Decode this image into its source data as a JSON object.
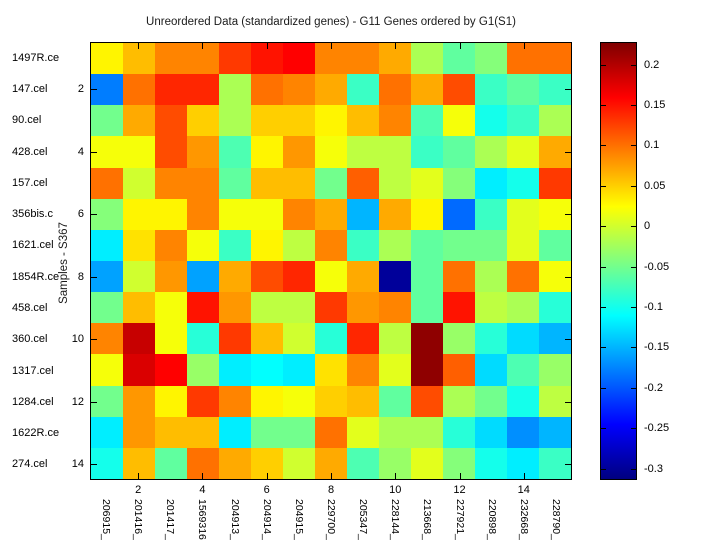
{
  "title": "Unreordered Data (standardized genes) - G11 Genes ordered by G1(S1)",
  "y_axis": {
    "label": "Samples - S367",
    "numeric_ticks": [
      {
        "row": 2,
        "label": "2"
      },
      {
        "row": 4,
        "label": "4"
      },
      {
        "row": 6,
        "label": "6"
      },
      {
        "row": 8,
        "label": "8"
      },
      {
        "row": 10,
        "label": "10"
      },
      {
        "row": 12,
        "label": "12"
      },
      {
        "row": 14,
        "label": "14"
      }
    ]
  },
  "x_axis": {
    "numeric_ticks": [
      {
        "col": 2,
        "label": "2"
      },
      {
        "col": 4,
        "label": "4"
      },
      {
        "col": 6,
        "label": "6"
      },
      {
        "col": 8,
        "label": "8"
      },
      {
        "col": 10,
        "label": "10"
      },
      {
        "col": 12,
        "label": "12"
      },
      {
        "col": 14,
        "label": "14"
      }
    ]
  },
  "colorbar": {
    "ticks": [
      {
        "value": 0.2,
        "label": "0.2"
      },
      {
        "value": 0.15,
        "label": "0.15"
      },
      {
        "value": 0.1,
        "label": "0.1"
      },
      {
        "value": 0.05,
        "label": "0.05"
      },
      {
        "value": 0,
        "label": "0"
      },
      {
        "value": -0.05,
        "label": "-0.05"
      },
      {
        "value": -0.1,
        "label": "-0.1"
      },
      {
        "value": -0.15,
        "label": "-0.15"
      },
      {
        "value": -0.2,
        "label": "-0.2"
      },
      {
        "value": -0.25,
        "label": "-0.25"
      },
      {
        "value": -0.3,
        "label": "-0.3"
      }
    ]
  },
  "chart_data": {
    "type": "heatmap",
    "title": "Unreordered Data (standardized genes) - G11 Genes ordered by G1(S1)",
    "ylabel": "Samples - S367",
    "colormap": "jet",
    "value_range": [
      -0.314,
      0.228
    ],
    "rows": [
      "1497R.ce",
      "147.cel",
      "90.cel",
      "428.cel",
      "157.cel",
      "356bis.c",
      "1621.cel",
      "1854R.ce",
      "458.cel",
      "360.cel",
      "1317.cel",
      "1284.cel",
      "1622R.ce",
      "274.cel"
    ],
    "columns": [
      "206915_",
      "201416_",
      "201417_",
      "1569316",
      "204913_",
      "204914_",
      "204915_",
      "229700_",
      "205347_",
      "228144_",
      "213668_",
      "227921_",
      "220898_",
      "232668_",
      "228790_"
    ],
    "values": [
      [
        0.03,
        0.06,
        0.09,
        0.09,
        0.13,
        0.15,
        0.16,
        0.09,
        0.09,
        0.07,
        -0.02,
        -0.06,
        -0.04,
        0.1,
        0.1
      ],
      [
        -0.18,
        0.1,
        0.14,
        0.14,
        -0.02,
        0.1,
        0.09,
        0.07,
        -0.08,
        0.1,
        0.07,
        0.12,
        -0.08,
        -0.06,
        -0.08
      ],
      [
        -0.05,
        0.07,
        0.12,
        0.05,
        -0.02,
        0.05,
        0.05,
        0.03,
        0.06,
        0.09,
        -0.07,
        0.02,
        -0.1,
        -0.08,
        -0.02
      ],
      [
        0.02,
        0.02,
        0.12,
        0.08,
        -0.07,
        0.03,
        0.08,
        0.02,
        -0.01,
        -0.01,
        -0.08,
        -0.06,
        -0.02,
        0.01,
        0.07
      ],
      [
        0.1,
        0.0,
        0.09,
        0.09,
        -0.06,
        0.06,
        0.06,
        -0.05,
        0.11,
        -0.01,
        0.01,
        -0.04,
        -0.12,
        -0.1,
        0.13
      ],
      [
        -0.04,
        0.03,
        0.03,
        0.09,
        0.02,
        0.02,
        0.09,
        0.07,
        -0.15,
        0.07,
        0.03,
        -0.19,
        -0.08,
        0.01,
        0.02
      ],
      [
        -0.12,
        0.04,
        0.09,
        0.02,
        -0.08,
        0.03,
        -0.01,
        0.09,
        -0.08,
        -0.02,
        -0.06,
        -0.05,
        -0.05,
        0.01,
        -0.06
      ],
      [
        -0.16,
        0.0,
        0.08,
        -0.16,
        0.07,
        0.12,
        0.14,
        0.02,
        0.07,
        -0.3,
        -0.06,
        0.1,
        -0.02,
        0.1,
        0.02
      ],
      [
        -0.05,
        0.06,
        0.02,
        0.15,
        0.08,
        -0.01,
        -0.01,
        0.13,
        0.08,
        0.09,
        -0.06,
        0.15,
        -0.01,
        -0.02,
        -0.09
      ],
      [
        0.09,
        0.19,
        0.02,
        -0.09,
        0.13,
        0.06,
        0.0,
        -0.09,
        0.14,
        -0.01,
        0.22,
        -0.03,
        -0.09,
        -0.13,
        -0.15
      ],
      [
        0.02,
        0.18,
        0.16,
        -0.03,
        -0.12,
        -0.11,
        -0.12,
        0.04,
        0.09,
        0.01,
        0.22,
        0.11,
        -0.13,
        -0.07,
        -0.03
      ],
      [
        -0.05,
        0.08,
        0.03,
        0.13,
        0.09,
        0.03,
        0.02,
        0.05,
        0.06,
        -0.06,
        0.12,
        -0.02,
        -0.05,
        -0.1,
        -0.01
      ],
      [
        -0.12,
        0.08,
        0.06,
        0.06,
        -0.12,
        -0.05,
        -0.05,
        0.1,
        0.01,
        -0.02,
        -0.02,
        -0.09,
        -0.13,
        -0.17,
        -0.15
      ],
      [
        -0.1,
        0.06,
        -0.06,
        0.1,
        0.07,
        0.05,
        0.0,
        0.07,
        -0.07,
        -0.03,
        0.01,
        -0.04,
        -0.1,
        -0.12,
        -0.08
      ]
    ]
  }
}
